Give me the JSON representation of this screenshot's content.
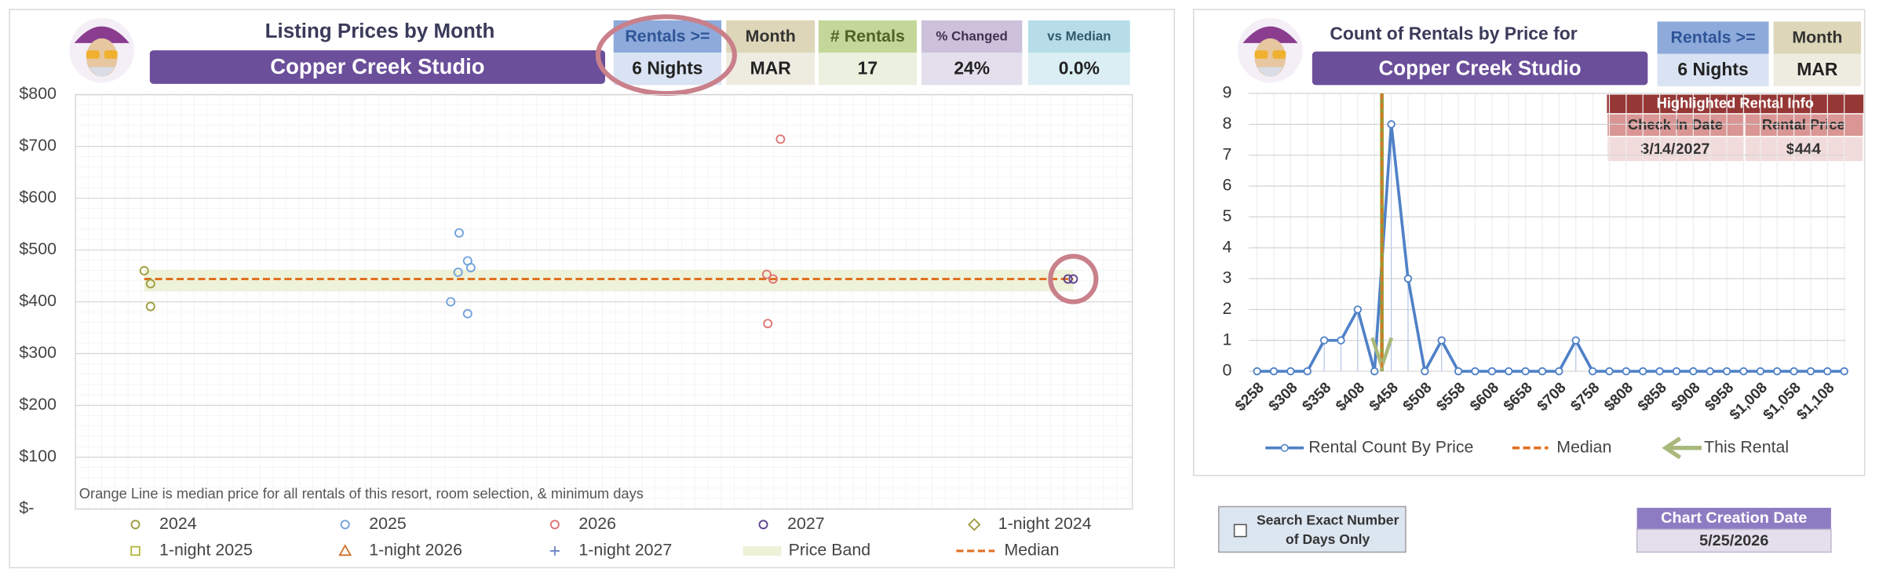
{
  "left_panel": {
    "boxes": [
      {
        "label": "Rentals >=",
        "value": "6 Nights"
      },
      {
        "label": "Month",
        "value": "MAR"
      },
      {
        "label": "# Rentals",
        "value": "17"
      },
      {
        "label": "% Changed",
        "value": "24%"
      },
      {
        "label": "vs Median",
        "value": "0.0%"
      }
    ]
  },
  "right_panel": {
    "boxes": [
      {
        "label": "Rentals >=",
        "value": "6 Nights"
      },
      {
        "label": "Month",
        "value": "MAR"
      }
    ],
    "highlight_table": {
      "title": "Highlighted Rental Info",
      "headers": [
        "Check In Date",
        "Rental Price"
      ],
      "row": [
        "3/14/2027",
        "$444"
      ]
    }
  },
  "checkbox": {
    "lines": [
      "Search Exact Number",
      "of Days Only"
    ]
  },
  "creation": {
    "label": "Chart Creation Date",
    "value": "5/25/2026"
  },
  "chart_data": [
    {
      "type": "scatter",
      "title": "Listing Prices by Month",
      "subtitle": "Copper Creek Studio",
      "annotation": "Orange Line is median price for all rentals of this resort, room selection, & minimum days",
      "xlim": [
        0,
        100
      ],
      "ylim": [
        0,
        800
      ],
      "yticks": [
        {
          "value": 0,
          "label": "$-"
        },
        {
          "value": 100,
          "label": "$100"
        },
        {
          "value": 200,
          "label": "$200"
        },
        {
          "value": 300,
          "label": "$300"
        },
        {
          "value": 400,
          "label": "$400"
        },
        {
          "value": 500,
          "label": "$500"
        },
        {
          "value": 600,
          "label": "$600"
        },
        {
          "value": 700,
          "label": "$700"
        },
        {
          "value": 800,
          "label": "$800"
        }
      ],
      "grid": true,
      "series": [
        {
          "name": "2024",
          "color": "#9c9a3a",
          "marker": "circle",
          "x": [
            6.5,
            7.1,
            7.1
          ],
          "values": [
            460,
            435,
            391
          ]
        },
        {
          "name": "2025",
          "color": "#6fa0dc",
          "marker": "circle",
          "x": [
            35.5,
            36.2,
            36.3,
            37.1,
            37.4,
            37.1
          ],
          "values": [
            400,
            457,
            533,
            479,
            466,
            377
          ]
        },
        {
          "name": "2026",
          "color": "#e07070",
          "marker": "circle",
          "x": [
            66.7,
            65.4,
            66.0,
            65.5
          ],
          "values": [
            714,
            453,
            444,
            358
          ]
        },
        {
          "name": "2027",
          "color": "#5a3f8a",
          "marker": "circle",
          "x": [
            93.9,
            94.4
          ],
          "values": [
            444,
            444
          ]
        },
        {
          "name": "1-night 2024",
          "color": "#9c9a3a",
          "marker": "diamond",
          "x": [],
          "values": []
        },
        {
          "name": "1-night 2025",
          "color": "#b5b53c",
          "marker": "square",
          "x": [],
          "values": []
        },
        {
          "name": "1-night 2026",
          "color": "#d0702a",
          "marker": "triangle",
          "x": [],
          "values": []
        },
        {
          "name": "1-night 2027",
          "color": "#6f84c7",
          "marker": "plus",
          "x": [],
          "values": []
        }
      ],
      "price_band": {
        "name": "Price Band",
        "color": "#eef2d9",
        "range": [
          420,
          462
        ]
      },
      "median": {
        "name": "Median",
        "color": "#e07020",
        "value": 444,
        "x": [
          6.5,
          94.4
        ]
      }
    },
    {
      "type": "line",
      "title": "Count of Rentals by Price for",
      "subtitle": "Copper Creek Studio",
      "categories": [
        "$258",
        null,
        "$308",
        null,
        "$358",
        null,
        "$408",
        null,
        "$458",
        null,
        "$508",
        null,
        "$558",
        null,
        "$608",
        null,
        "$658",
        null,
        "$708",
        null,
        "$758",
        null,
        "$808",
        null,
        "$858",
        null,
        "$908",
        null,
        "$958",
        null,
        "$1,008",
        null,
        "$1,058",
        null,
        "$1,108",
        null
      ],
      "series": [
        {
          "name": "Rental Count By Price",
          "color": "#4f81c7",
          "values": [
            0,
            0,
            0,
            0,
            1,
            1,
            2,
            0,
            8,
            3,
            0,
            1,
            0,
            0,
            0,
            0,
            0,
            0,
            0,
            1,
            0,
            0,
            0,
            0,
            0,
            0,
            0,
            0,
            0,
            0,
            0,
            0,
            0,
            0,
            0,
            0
          ]
        }
      ],
      "ylim": [
        0,
        9
      ],
      "yticks": [
        0,
        1,
        2,
        3,
        4,
        5,
        6,
        7,
        8,
        9
      ],
      "grid": true,
      "median": {
        "name": "Median",
        "color": "#e07020",
        "value": 444
      },
      "highlight": {
        "name": "This Rental",
        "color": "#a9b97c",
        "value": 444
      }
    }
  ]
}
